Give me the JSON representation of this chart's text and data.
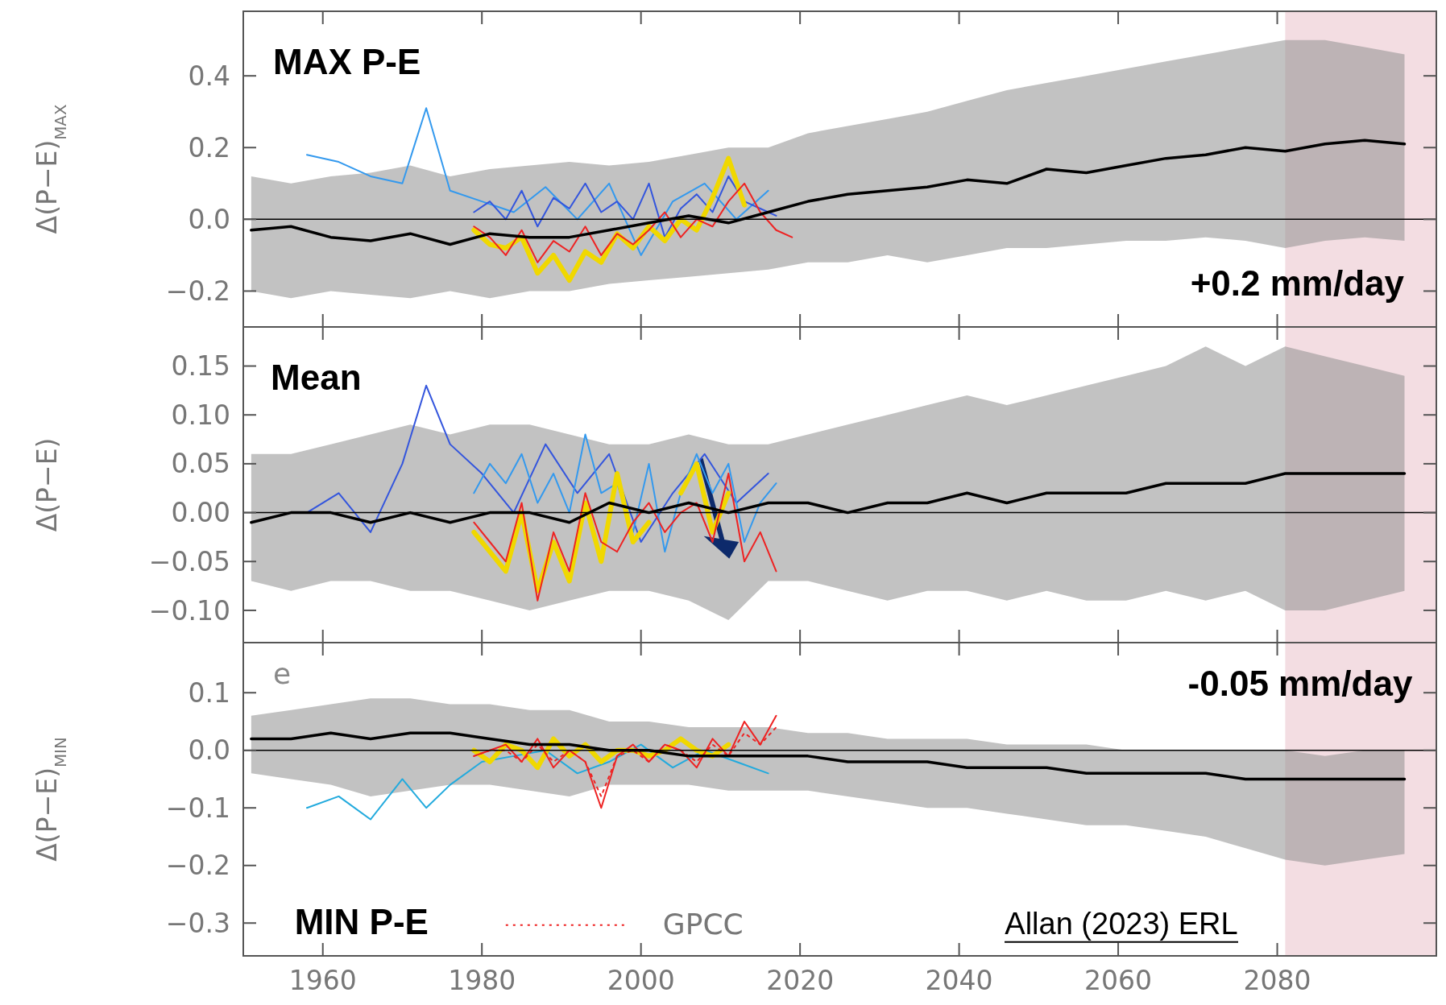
{
  "chart_data": [
    {
      "type": "line",
      "ylabel": "Δ(P−E)$_{MAX}$",
      "xlim": [
        1950,
        2100
      ],
      "xticks": [
        1960,
        1980,
        2000,
        2020,
        2040,
        2060,
        2080
      ],
      "ylim": [
        -0.3,
        0.58
      ],
      "yticks": [
        {
          "value": -0.2,
          "label": "−0.2"
        },
        {
          "value": 0,
          "label": "0.0"
        },
        {
          "value": 0.2,
          "label": "0.2"
        },
        {
          "value": 0.4,
          "label": "0.4"
        }
      ],
      "tick_labels": "y",
      "x": [
        1951,
        1956,
        1961,
        1966,
        1971,
        1976,
        1981,
        1986,
        1991,
        1996,
        2001,
        2006,
        2011,
        2016,
        2021,
        2026,
        2031,
        2036,
        2041,
        2046,
        2051,
        2056,
        2061,
        2066,
        2071,
        2076,
        2081,
        2086,
        2091,
        2096
      ],
      "series": [
        {
          "color": "#3399ee",
          "x": [
            1958,
            1962,
            1966,
            1970,
            1973,
            1976,
            1980,
            1984,
            1988,
            1992,
            1996,
            2000,
            2004,
            2008,
            2012,
            2016
          ],
          "values": [
            0.18,
            0.16,
            0.12,
            0.1,
            0.31,
            0.08,
            0.05,
            0.02,
            0.09,
            0.0,
            0.1,
            -0.1,
            0.05,
            0.1,
            0.0,
            0.08
          ]
        },
        {
          "color": "#3355dd",
          "x": [
            1979,
            1981,
            1983,
            1985,
            1987,
            1989,
            1991,
            1993,
            1995,
            1997,
            1999,
            2001,
            2003,
            2005,
            2007,
            2009,
            2011,
            2013,
            2015,
            2017
          ],
          "values": [
            0.02,
            0.05,
            0.0,
            0.08,
            -0.02,
            0.06,
            0.03,
            0.1,
            0.02,
            0.05,
            0.0,
            0.1,
            -0.05,
            0.03,
            0.07,
            0.02,
            0.12,
            0.05,
            0.03,
            0.01
          ]
        },
        {
          "color": "#f0d800",
          "x": [
            1979,
            1981,
            1983,
            1985,
            1987,
            1989,
            1991,
            1993,
            1995,
            1997,
            1999,
            2001,
            2003,
            2005,
            2007,
            2009,
            2011,
            2013
          ],
          "values": [
            -0.03,
            -0.07,
            -0.08,
            -0.05,
            -0.15,
            -0.1,
            -0.17,
            -0.09,
            -0.12,
            -0.04,
            -0.08,
            -0.02,
            -0.06,
            0.0,
            -0.03,
            0.06,
            0.17,
            0.04
          ]
        },
        {
          "color": "#ee2222",
          "x": [
            1979,
            1981,
            1983,
            1985,
            1987,
            1989,
            1991,
            1993,
            1995,
            1997,
            1999,
            2001,
            2003,
            2005,
            2007,
            2009,
            2011,
            2013,
            2015,
            2017,
            2019
          ],
          "values": [
            -0.02,
            -0.05,
            -0.1,
            -0.03,
            -0.12,
            -0.06,
            -0.09,
            -0.02,
            -0.1,
            -0.04,
            -0.07,
            -0.03,
            0.02,
            -0.05,
            0.0,
            -0.02,
            0.05,
            0.1,
            0.02,
            -0.03,
            -0.05
          ]
        },
        {
          "color": "#000000",
          "values": [
            -0.03,
            -0.02,
            -0.05,
            -0.06,
            -0.04,
            -0.07,
            -0.04,
            -0.05,
            -0.05,
            -0.03,
            -0.01,
            0.01,
            -0.01,
            0.02,
            0.05,
            0.07,
            0.08,
            0.09,
            0.11,
            0.1,
            0.14,
            0.13,
            0.15,
            0.17,
            0.18,
            0.2,
            0.19,
            0.21,
            0.22,
            0.21
          ],
          "lower": [
            -0.2,
            -0.22,
            -0.2,
            -0.21,
            -0.22,
            -0.2,
            -0.22,
            -0.2,
            -0.2,
            -0.18,
            -0.17,
            -0.16,
            -0.15,
            -0.14,
            -0.12,
            -0.12,
            -0.1,
            -0.12,
            -0.1,
            -0.08,
            -0.08,
            -0.07,
            -0.06,
            -0.06,
            -0.05,
            -0.06,
            -0.08,
            -0.06,
            -0.05,
            -0.06
          ],
          "upper": [
            0.12,
            0.1,
            0.12,
            0.13,
            0.15,
            0.12,
            0.14,
            0.15,
            0.16,
            0.15,
            0.16,
            0.18,
            0.2,
            0.2,
            0.24,
            0.26,
            0.28,
            0.3,
            0.33,
            0.36,
            0.38,
            0.4,
            0.42,
            0.44,
            0.46,
            0.48,
            0.5,
            0.5,
            0.48,
            0.46
          ]
        }
      ],
      "ref_lines": [
        {
          "axis": "y",
          "value": 0,
          "color": "#000000"
        }
      ],
      "bands": [
        {
          "axis": "x",
          "from": 2081,
          "to": 2100,
          "color": "#f3dde2"
        }
      ],
      "annotations": [
        "MAX P-E",
        "+0.2 mm/day"
      ]
    },
    {
      "type": "line",
      "ylabel": "Δ(P−E)",
      "xlim": [
        1950,
        2100
      ],
      "xticks": [
        1960,
        1980,
        2000,
        2020,
        2040,
        2060,
        2080
      ],
      "ylim": [
        -0.133,
        0.19
      ],
      "yticks": [
        {
          "value": -0.1,
          "label": "−0.10"
        },
        {
          "value": -0.05,
          "label": "−0.05"
        },
        {
          "value": 0,
          "label": "0.00"
        },
        {
          "value": 0.05,
          "label": "0.05"
        },
        {
          "value": 0.1,
          "label": "0.10"
        },
        {
          "value": 0.15,
          "label": "0.15"
        }
      ],
      "tick_labels": "y",
      "x": [
        1951,
        1956,
        1961,
        1966,
        1971,
        1976,
        1981,
        1986,
        1991,
        1996,
        2001,
        2006,
        2011,
        2016,
        2021,
        2026,
        2031,
        2036,
        2041,
        2046,
        2051,
        2056,
        2061,
        2066,
        2071,
        2076,
        2081,
        2086,
        2091,
        2096
      ],
      "series": [
        {
          "color": "#3355dd",
          "x": [
            1958,
            1962,
            1966,
            1970,
            1973,
            1976,
            1980,
            1984,
            1988,
            1992,
            1996,
            2000,
            2004,
            2008,
            2012,
            2016
          ],
          "values": [
            0.0,
            0.02,
            -0.02,
            0.05,
            0.13,
            0.07,
            0.04,
            0.0,
            0.07,
            0.02,
            0.06,
            -0.03,
            0.02,
            0.06,
            0.01,
            0.04
          ]
        },
        {
          "color": "#3399ee",
          "x": [
            1979,
            1981,
            1983,
            1985,
            1987,
            1989,
            1991,
            1993,
            1995,
            1997,
            1999,
            2001,
            2003,
            2005,
            2007,
            2009,
            2011,
            2013,
            2015,
            2017
          ],
          "values": [
            0.02,
            0.05,
            0.03,
            0.06,
            0.01,
            0.04,
            0.0,
            0.08,
            0.02,
            0.03,
            -0.02,
            0.05,
            -0.04,
            0.02,
            0.06,
            0.02,
            0.05,
            -0.03,
            0.01,
            0.03
          ]
        },
        {
          "color": "#f0d800",
          "x": [
            1979,
            1981,
            1983,
            1985,
            1987,
            1989,
            1991,
            1993,
            1995,
            1997,
            1999,
            2001,
            2003,
            2005,
            2007,
            2009,
            2011
          ],
          "values": [
            -0.02,
            -0.04,
            -0.06,
            0.0,
            -0.08,
            -0.03,
            -0.07,
            0.01,
            -0.05,
            0.04,
            -0.03,
            -0.01,
            null,
            0.02,
            0.05,
            -0.02,
            0.02
          ]
        },
        {
          "color": "#ee2222",
          "x": [
            1979,
            1981,
            1983,
            1985,
            1987,
            1989,
            1991,
            1993,
            1995,
            1997,
            1999,
            2001,
            2003,
            2005,
            2007,
            2009,
            2011,
            2013,
            2015,
            2017
          ],
          "values": [
            -0.01,
            -0.03,
            -0.05,
            0.01,
            -0.09,
            -0.02,
            -0.06,
            0.02,
            -0.03,
            -0.04,
            -0.01,
            0.01,
            -0.02,
            0.0,
            0.01,
            -0.03,
            0.04,
            -0.05,
            -0.02,
            -0.06
          ]
        },
        {
          "color": "#000000",
          "values": [
            -0.01,
            0.0,
            0.0,
            -0.01,
            0.0,
            -0.01,
            0.0,
            0.0,
            -0.01,
            0.01,
            0.0,
            0.01,
            0.0,
            0.01,
            0.01,
            0.0,
            0.01,
            0.01,
            0.02,
            0.01,
            0.02,
            0.02,
            0.02,
            0.03,
            0.03,
            0.03,
            0.04,
            0.04,
            0.04,
            0.04
          ],
          "lower": [
            -0.07,
            -0.08,
            -0.07,
            -0.07,
            -0.08,
            -0.08,
            -0.09,
            -0.1,
            -0.09,
            -0.08,
            -0.08,
            -0.09,
            -0.11,
            -0.07,
            -0.07,
            -0.08,
            -0.09,
            -0.08,
            -0.08,
            -0.09,
            -0.08,
            -0.09,
            -0.09,
            -0.08,
            -0.09,
            -0.08,
            -0.1,
            -0.1,
            -0.09,
            -0.08
          ],
          "upper": [
            0.06,
            0.06,
            0.07,
            0.08,
            0.09,
            0.08,
            0.09,
            0.09,
            0.08,
            0.07,
            0.07,
            0.08,
            0.07,
            0.07,
            0.08,
            0.09,
            0.1,
            0.11,
            0.12,
            0.11,
            0.12,
            0.13,
            0.14,
            0.15,
            0.17,
            0.15,
            0.17,
            0.16,
            0.15,
            0.14
          ]
        }
      ],
      "ref_lines": [
        {
          "axis": "y",
          "value": 0,
          "color": "#000000"
        }
      ],
      "bands": [
        {
          "axis": "x",
          "from": 2081,
          "to": 2100,
          "color": "#f3dde2"
        }
      ],
      "annotations": [
        "Mean"
      ]
    },
    {
      "type": "line",
      "ylabel": "Δ(P−E)$_{MIN}$",
      "xlim": [
        1950,
        2100
      ],
      "xticks": [
        1960,
        1980,
        2000,
        2020,
        2040,
        2060,
        2080
      ],
      "ylim": [
        -0.357,
        0.187
      ],
      "yticks": [
        {
          "value": -0.3,
          "label": "−0.3"
        },
        {
          "value": -0.2,
          "label": "−0.2"
        },
        {
          "value": -0.1,
          "label": "−0.1"
        },
        {
          "value": 0,
          "label": "0.0"
        },
        {
          "value": 0.1,
          "label": "0.1"
        }
      ],
      "legend": "bottom",
      "x": [
        1951,
        1956,
        1961,
        1966,
        1971,
        1976,
        1981,
        1986,
        1991,
        1996,
        2001,
        2006,
        2011,
        2016,
        2021,
        2026,
        2031,
        2036,
        2041,
        2046,
        2051,
        2056,
        2061,
        2066,
        2071,
        2076,
        2081,
        2086,
        2091,
        2096
      ],
      "series": [
        {
          "color": "#22aadd",
          "x": [
            1958,
            1962,
            1966,
            1970,
            1973,
            1976,
            1980,
            1984,
            1988,
            1992,
            1996,
            2000,
            2004,
            2008,
            2012,
            2016
          ],
          "values": [
            -0.1,
            -0.08,
            -0.12,
            -0.05,
            -0.1,
            -0.06,
            -0.02,
            -0.01,
            0.0,
            -0.04,
            -0.02,
            0.01,
            -0.03,
            0.0,
            -0.02,
            -0.04
          ]
        },
        {
          "color": "#f0d800",
          "x": [
            1979,
            1981,
            1983,
            1985,
            1987,
            1989,
            1991,
            1993,
            1995,
            1997,
            1999,
            2001,
            2003,
            2005,
            2007,
            2009,
            2011
          ],
          "values": [
            0.0,
            -0.02,
            0.01,
            0.0,
            -0.03,
            0.02,
            -0.01,
            0.01,
            -0.02,
            0.0,
            0.0,
            -0.01,
            0.0,
            0.02,
            0.0,
            -0.01,
            0.01
          ]
        },
        {
          "color": "#ee2222",
          "x": [
            1979,
            1981,
            1983,
            1985,
            1987,
            1989,
            1991,
            1993,
            1995,
            1997,
            1999,
            2001,
            2003,
            2005,
            2007,
            2009,
            2011,
            2013,
            2015,
            2017
          ],
          "values": [
            -0.01,
            0.0,
            0.01,
            -0.02,
            0.02,
            -0.03,
            0.0,
            -0.02,
            -0.1,
            -0.01,
            0.01,
            -0.02,
            0.01,
            0.0,
            -0.03,
            0.02,
            -0.01,
            0.05,
            0.01,
            0.06
          ]
        },
        {
          "name": "GPCC",
          "color": "#ee2222",
          "line_style": "dotted",
          "x": [
            1979,
            1981,
            1983,
            1985,
            1987,
            1989,
            1991,
            1993,
            1995,
            1997,
            1999,
            2001,
            2003,
            2005,
            2007,
            2009,
            2011,
            2013,
            2015,
            2017
          ],
          "values": [
            -0.01,
            0.0,
            0.0,
            -0.02,
            0.01,
            -0.02,
            0.0,
            -0.02,
            -0.08,
            -0.01,
            0.0,
            -0.02,
            0.01,
            0.0,
            -0.02,
            0.01,
            -0.01,
            0.03,
            0.01,
            0.04
          ]
        },
        {
          "color": "#000000",
          "values": [
            0.02,
            0.02,
            0.03,
            0.02,
            0.03,
            0.03,
            0.02,
            0.01,
            0.01,
            0.0,
            0.0,
            -0.01,
            -0.01,
            -0.01,
            -0.01,
            -0.02,
            -0.02,
            -0.02,
            -0.03,
            -0.03,
            -0.03,
            -0.04,
            -0.04,
            -0.04,
            -0.04,
            -0.05,
            -0.05,
            -0.05,
            -0.05,
            -0.05
          ],
          "lower": [
            -0.04,
            -0.05,
            -0.06,
            -0.08,
            -0.07,
            -0.06,
            -0.06,
            -0.07,
            -0.08,
            -0.06,
            -0.06,
            -0.06,
            -0.07,
            -0.07,
            -0.07,
            -0.08,
            -0.09,
            -0.1,
            -0.1,
            -0.11,
            -0.12,
            -0.13,
            -0.13,
            -0.14,
            -0.15,
            -0.17,
            -0.19,
            -0.2,
            -0.19,
            -0.18
          ],
          "upper": [
            0.06,
            0.07,
            0.08,
            0.09,
            0.09,
            0.08,
            0.08,
            0.07,
            0.07,
            0.05,
            0.05,
            0.04,
            0.04,
            0.04,
            0.03,
            0.03,
            0.02,
            0.02,
            0.02,
            0.01,
            0.01,
            0.01,
            0.0,
            0.0,
            0.0,
            0.0,
            0.0,
            -0.01,
            0.0,
            0.0
          ]
        }
      ],
      "ref_lines": [
        {
          "axis": "y",
          "value": 0,
          "color": "#000000"
        }
      ],
      "bands": [
        {
          "axis": "x",
          "from": 2081,
          "to": 2100,
          "color": "#f3dde2"
        }
      ],
      "annotations": [
        "e",
        "-0.05 mm/day",
        "MIN P-E",
        "Allan (2023) ERL"
      ]
    }
  ]
}
